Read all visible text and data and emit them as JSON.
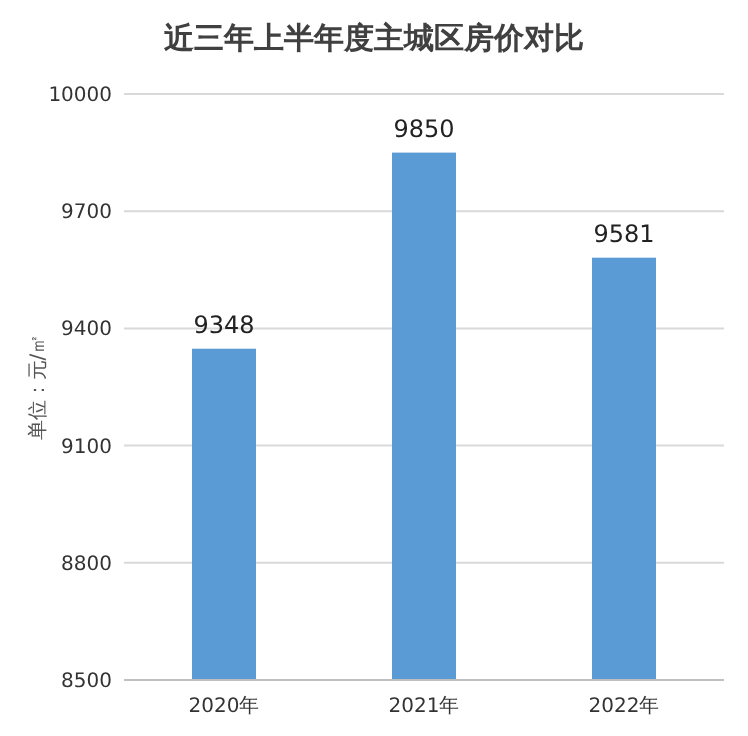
{
  "chart_data": {
    "type": "bar",
    "title": "近三年上半年度主城区房价对比",
    "ylabel": "单位：元/㎡",
    "categories": [
      "2020年",
      "2021年",
      "2022年"
    ],
    "values": [
      9348,
      9850,
      9581
    ],
    "color": "#5b9bd5",
    "ylim": [
      8500,
      10000
    ],
    "yticks": [
      8500,
      8800,
      9100,
      9400,
      9700,
      10000
    ],
    "grid": "y",
    "data_labels": true
  }
}
